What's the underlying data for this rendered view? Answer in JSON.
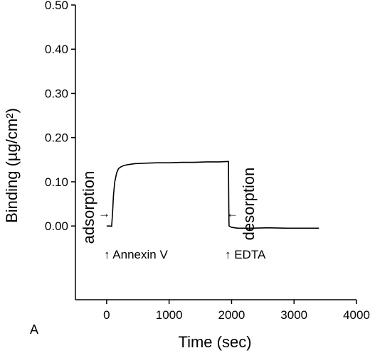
{
  "chart_data": {
    "type": "line",
    "panel_label": "A",
    "xlabel": "Time (sec)",
    "ylabel": "Binding (µg/cm²)",
    "xlim": [
      -500,
      4000
    ],
    "ylim": [
      -0.1668,
      0.5
    ],
    "x_ticks": [
      0,
      1000,
      2000,
      3000,
      4000
    ],
    "x_tick_labels": [
      "0",
      "1000",
      "2000",
      "3000",
      "4000"
    ],
    "y_ticks": [
      0.0,
      0.1,
      0.2,
      0.3,
      0.4,
      0.5
    ],
    "y_tick_labels": [
      "0.00",
      "0.10",
      "0.20",
      "0.30",
      "0.40",
      "0.50"
    ],
    "grid": false,
    "legend": "none",
    "series": [
      {
        "x": [
          0,
          60,
          80,
          95,
          110,
          130,
          160,
          190,
          230,
          280,
          350,
          450,
          600,
          800,
          1000,
          1200,
          1400,
          1600,
          1800,
          1950,
          1955,
          1960,
          2000,
          2100,
          2300,
          2600,
          2900,
          3200,
          3400
        ],
        "y": [
          0.0,
          0.0,
          -0.001,
          0.03,
          0.07,
          0.1,
          0.12,
          0.13,
          0.134,
          0.137,
          0.139,
          0.141,
          0.142,
          0.143,
          0.143,
          0.144,
          0.144,
          0.145,
          0.145,
          0.146,
          0.05,
          0.0,
          -0.003,
          -0.005,
          -0.005,
          -0.004,
          -0.005,
          -0.005,
          -0.005
        ]
      }
    ],
    "annotations": {
      "annexin": "↑ Annexin V",
      "edta": "↑ EDTA",
      "adsorption": "adsorption",
      "desorption": "desorption",
      "arrow_right": "→",
      "arrow_left": "←"
    }
  }
}
